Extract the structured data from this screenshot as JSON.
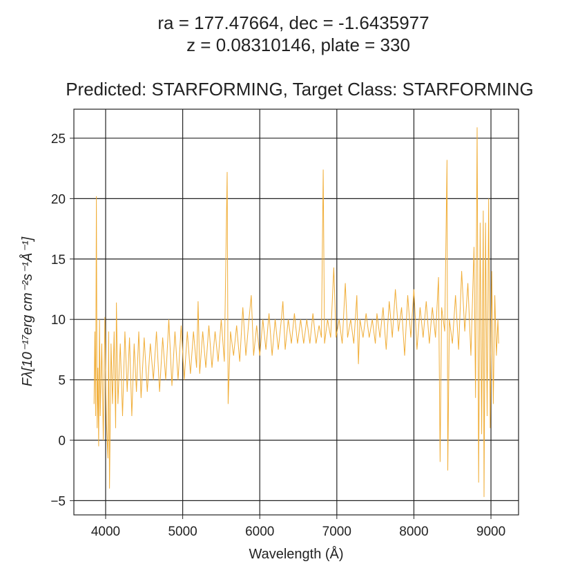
{
  "chart_data": {
    "type": "line",
    "title": [
      "ra = 177.47664, dec = -1.6435977",
      "z = 0.08310146, plate = 330"
    ],
    "subtitle": "Predicted: STARFORMING, Target Class: STARFORMING",
    "xlabel": "Wavelength (Å)",
    "ylabel": "Fλ[10⁻¹⁷erg cm⁻²s⁻¹Å⁻¹]",
    "xlim": [
      3588,
      9358
    ],
    "ylim": [
      -6.18,
      27.4
    ],
    "xticks": [
      4000,
      5000,
      6000,
      7000,
      8000,
      9000
    ],
    "yticks": [
      {
        "value": -5,
        "label": "−5"
      },
      0,
      5,
      10,
      15,
      20,
      25
    ],
    "grid": true,
    "x": [
      3850,
      3860,
      3870,
      3880,
      3890,
      3900,
      3910,
      3920,
      3930,
      3950,
      3970,
      3990,
      4010,
      4030,
      4040,
      4050,
      4070,
      4090,
      4110,
      4130,
      4140,
      4160,
      4190,
      4220,
      4250,
      4280,
      4310,
      4340,
      4370,
      4400,
      4430,
      4460,
      4500,
      4540,
      4580,
      4620,
      4660,
      4700,
      4740,
      4780,
      4820,
      4860,
      4900,
      4940,
      4980,
      5020,
      5060,
      5100,
      5140,
      5180,
      5200,
      5220,
      5260,
      5300,
      5340,
      5380,
      5420,
      5460,
      5500,
      5540,
      5577,
      5590,
      5620,
      5660,
      5700,
      5740,
      5780,
      5820,
      5860,
      5890,
      5920,
      5960,
      6000,
      6040,
      6080,
      6120,
      6160,
      6200,
      6240,
      6280,
      6300,
      6330,
      6370,
      6410,
      6450,
      6490,
      6530,
      6570,
      6610,
      6650,
      6690,
      6730,
      6770,
      6800,
      6823,
      6840,
      6880,
      6920,
      6960,
      6990,
      7030,
      7070,
      7110,
      7140,
      7180,
      7220,
      7260,
      7280,
      7300,
      7340,
      7380,
      7420,
      7460,
      7500,
      7520,
      7560,
      7600,
      7640,
      7680,
      7720,
      7760,
      7800,
      7840,
      7880,
      7920,
      7960,
      8000,
      8040,
      8080,
      8120,
      8160,
      8200,
      8240,
      8280,
      8320,
      8340,
      8360,
      8400,
      8430,
      8440,
      8460,
      8500,
      8540,
      8580,
      8620,
      8660,
      8700,
      8740,
      8780,
      8800,
      8820,
      8840,
      8860,
      8880,
      8900,
      8910,
      8930,
      8950,
      8970,
      8990,
      9010,
      9030,
      9050,
      9070,
      9090,
      9100
    ],
    "series": [
      {
        "name": "flux",
        "color": "#f0ad37",
        "values": [
          3,
          9,
          2,
          20.2,
          1,
          6,
          -0.5,
          10,
          2,
          8,
          0,
          10.2,
          1.5,
          -1.5,
          9,
          -4,
          8,
          3,
          9,
          1,
          11.4,
          3,
          8,
          2,
          9,
          4,
          8.5,
          2,
          8,
          4,
          9,
          3.5,
          8.5,
          4,
          8,
          5,
          9,
          4,
          8.5,
          5,
          10,
          4.5,
          9,
          5,
          9.5,
          5,
          9,
          5.5,
          9,
          6,
          11.5,
          5.5,
          9,
          6,
          9.5,
          6,
          9,
          6.5,
          10,
          6.5,
          22.2,
          3,
          9,
          7,
          9.5,
          6.5,
          11,
          7,
          10,
          12,
          7,
          9.5,
          7,
          10,
          7.5,
          10.5,
          7,
          10,
          7.5,
          10,
          11.5,
          7.5,
          10,
          8,
          10.5,
          8,
          10,
          8,
          10,
          8,
          10.5,
          8,
          9.5,
          8.5,
          22.4,
          8,
          10,
          8.5,
          14.3,
          8.5,
          10,
          8,
          13,
          8.5,
          10,
          8,
          12,
          6.3,
          10,
          8.5,
          10.5,
          8.5,
          10,
          8,
          10.5,
          8.5,
          11,
          7.5,
          11.5,
          8.5,
          12.5,
          9,
          11,
          7,
          12,
          8.5,
          12.5,
          7.5,
          11,
          8.5,
          11.5,
          8,
          11,
          8.5,
          13.5,
          -1.8,
          11,
          9,
          23.2,
          -2.5,
          10,
          8,
          12,
          7.5,
          14,
          9,
          13,
          7,
          16,
          3.5,
          25.9,
          -3.5,
          18,
          0.5,
          19,
          -4.7,
          18,
          2,
          20,
          1,
          14,
          3,
          12,
          7,
          10,
          8
        ]
      }
    ]
  }
}
